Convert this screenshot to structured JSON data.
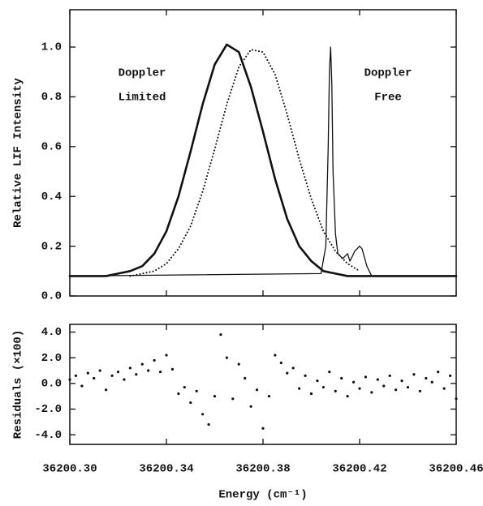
{
  "chart_data": [
    {
      "type": "line",
      "y_label": "Relative LIF Intensity",
      "annotations": [
        [
          "Doppler",
          "Limited"
        ],
        [
          "Doppler",
          "Free"
        ]
      ],
      "xlim": [
        36200.3,
        36200.46
      ],
      "xticks": [
        36200.3,
        36200.34,
        36200.38,
        36200.42,
        36200.46
      ],
      "ylim": [
        0,
        1.15
      ],
      "yticks": [
        {
          "value": 0,
          "label": "0.0"
        },
        0.2,
        0.4,
        0.6,
        0.8,
        {
          "value": 1,
          "label": "1.0"
        }
      ],
      "series": [
        {
          "color": "#111111",
          "linestyle": "solid",
          "linewidth": 2.6,
          "x": [
            36200.3,
            36200.305,
            36200.31,
            36200.315,
            36200.32,
            36200.325,
            36200.33,
            36200.335,
            36200.34,
            36200.345,
            36200.35,
            36200.355,
            36200.36,
            36200.365,
            36200.37,
            36200.375,
            36200.38,
            36200.385,
            36200.39,
            36200.395,
            36200.4,
            36200.405,
            36200.41,
            36200.415,
            36200.42,
            36200.425,
            36200.46
          ],
          "values": [
            0.08,
            0.08,
            0.08,
            0.08,
            0.09,
            0.1,
            0.12,
            0.17,
            0.26,
            0.4,
            0.58,
            0.77,
            0.93,
            1.01,
            0.98,
            0.84,
            0.66,
            0.47,
            0.31,
            0.2,
            0.14,
            0.1,
            0.09,
            0.08,
            0.08,
            0.08,
            0.08
          ]
        },
        {
          "color": "#111111",
          "linestyle": "dotted",
          "linewidth": 2,
          "x": [
            36200.325,
            36200.33,
            36200.335,
            36200.34,
            36200.345,
            36200.35,
            36200.355,
            36200.36,
            36200.365,
            36200.37,
            36200.375,
            36200.38,
            36200.385,
            36200.39,
            36200.395,
            36200.4,
            36200.405,
            36200.41,
            36200.415,
            36200.42
          ],
          "values": [
            0.08,
            0.09,
            0.1,
            0.13,
            0.19,
            0.28,
            0.42,
            0.59,
            0.77,
            0.92,
            0.99,
            0.98,
            0.89,
            0.73,
            0.55,
            0.39,
            0.26,
            0.18,
            0.13,
            0.1
          ]
        },
        {
          "color": "#111111",
          "linestyle": "solid",
          "linewidth": 1.3,
          "x": [
            36200.3,
            36200.404,
            36200.406,
            36200.407,
            36200.4075,
            36200.408,
            36200.4085,
            36200.409,
            36200.41,
            36200.411,
            36200.413,
            36200.415,
            36200.416,
            36200.418,
            36200.42,
            36200.421,
            36200.423,
            36200.425,
            36200.46
          ],
          "values": [
            0.08,
            0.09,
            0.2,
            0.6,
            0.9,
            1.0,
            0.85,
            0.5,
            0.25,
            0.17,
            0.15,
            0.17,
            0.14,
            0.18,
            0.2,
            0.19,
            0.12,
            0.08,
            0.08
          ]
        }
      ]
    },
    {
      "type": "scatter",
      "x_label": "Energy (cm⁻¹)",
      "y_label": "Residuals (×100)",
      "xlim": [
        36200.3,
        36200.46
      ],
      "xticks": [
        {
          "value": 36200.3,
          "label": "36200.30"
        },
        {
          "value": 36200.34,
          "label": "36200.34"
        },
        {
          "value": 36200.38,
          "label": "36200.38"
        },
        {
          "value": 36200.42,
          "label": "36200.42"
        },
        {
          "value": 36200.46,
          "label": "36200.46"
        }
      ],
      "ylim": [
        -4.75,
        4.6
      ],
      "yticks": [
        {
          "value": 4,
          "label": "4.0"
        },
        {
          "value": 2,
          "label": "2.0"
        },
        {
          "value": 0,
          "label": "0.0"
        },
        {
          "value": -2,
          "label": "-2.0"
        },
        {
          "value": -4,
          "label": "-4.0"
        }
      ],
      "series": [
        {
          "color": "#111111",
          "x": [
            36200.3,
            36200.3025,
            36200.305,
            36200.3075,
            36200.31,
            36200.3125,
            36200.315,
            36200.3175,
            36200.32,
            36200.3225,
            36200.325,
            36200.3275,
            36200.33,
            36200.3325,
            36200.335,
            36200.3375,
            36200.34,
            36200.3425,
            36200.345,
            36200.3475,
            36200.35,
            36200.3525,
            36200.355,
            36200.3575,
            36200.36,
            36200.3625,
            36200.365,
            36200.3675,
            36200.37,
            36200.3725,
            36200.375,
            36200.3775,
            36200.38,
            36200.3825,
            36200.385,
            36200.3875,
            36200.39,
            36200.3925,
            36200.395,
            36200.3975,
            36200.4,
            36200.4025,
            36200.405,
            36200.4075,
            36200.41,
            36200.4125,
            36200.415,
            36200.4175,
            36200.42,
            36200.4225,
            36200.425,
            36200.4275,
            36200.43,
            36200.4325,
            36200.435,
            36200.4375,
            36200.44,
            36200.4425,
            36200.445,
            36200.4475,
            36200.45,
            36200.4525,
            36200.455,
            36200.4575,
            36200.46
          ],
          "values": [
            0.3,
            0.6,
            -0.2,
            0.8,
            0.4,
            1.0,
            -0.5,
            0.6,
            0.9,
            0.3,
            1.2,
            0.7,
            1.5,
            1.0,
            1.8,
            0.9,
            2.2,
            1.1,
            -0.8,
            -0.3,
            -1.5,
            -0.6,
            -2.4,
            -3.2,
            -1.0,
            3.8,
            2.0,
            -1.2,
            1.5,
            0.4,
            -1.8,
            -0.5,
            -3.5,
            -1.0,
            2.2,
            1.6,
            0.8,
            1.2,
            -0.4,
            0.6,
            -0.8,
            0.2,
            -0.3,
            0.9,
            -0.6,
            0.4,
            -1.0,
            0.1,
            -0.4,
            0.5,
            -0.7,
            0.3,
            -0.2,
            0.6,
            -0.5,
            0.2,
            -0.3,
            0.7,
            -0.6,
            0.4,
            0.1,
            0.9,
            -0.4,
            0.6,
            -1.2
          ]
        }
      ]
    }
  ]
}
